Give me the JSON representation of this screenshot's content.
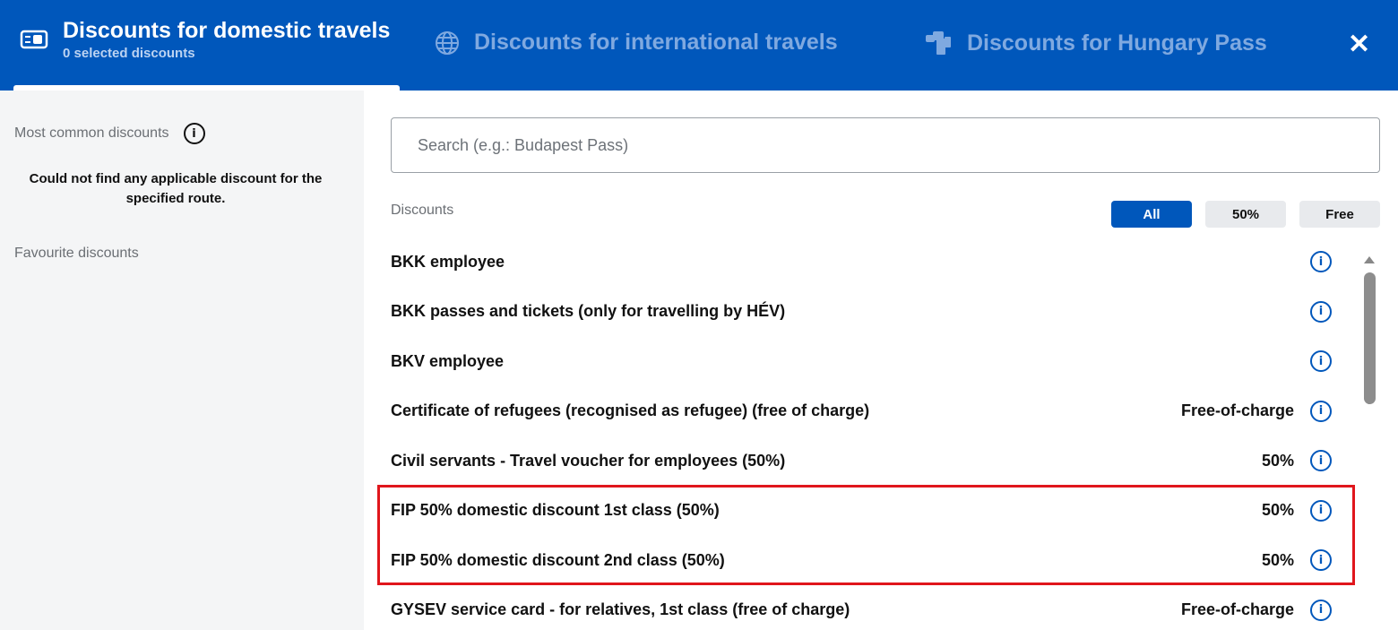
{
  "header": {
    "tabs": [
      {
        "label": "Discounts for domestic travels",
        "subtitle": "0 selected discounts",
        "icon": "card-icon",
        "active": true
      },
      {
        "label": "Discounts for international travels",
        "icon": "globe-icon"
      },
      {
        "label": "Discounts for Hungary Pass",
        "icon": "tickets-icon"
      }
    ],
    "close_icon": "close-icon"
  },
  "sidebar": {
    "common_label": "Most common discounts",
    "empty_message": "Could not find any applicable discount for the specified route.",
    "favourite_label": "Favourite discounts"
  },
  "main": {
    "search_placeholder": "Search (e.g.: Budapest Pass)",
    "discounts_label": "Discounts",
    "filters": [
      {
        "label": "All",
        "active": true
      },
      {
        "label": "50%"
      },
      {
        "label": "Free"
      }
    ],
    "rows": [
      {
        "name": "BKK employee",
        "value": ""
      },
      {
        "name": "BKK passes and tickets (only for travelling by HÉV)",
        "value": ""
      },
      {
        "name": "BKV employee",
        "value": ""
      },
      {
        "name": "Certificate of refugees (recognised as refugee) (free of charge)",
        "value": "Free-of-charge"
      },
      {
        "name": "Civil servants - Travel voucher for employees (50%)",
        "value": "50%"
      },
      {
        "name": "FIP 50% domestic discount 1st class (50%)",
        "value": "50%"
      },
      {
        "name": "FIP 50% domestic discount 2nd class (50%)",
        "value": "50%"
      },
      {
        "name": "GYSEV service card - for relatives, 1st class (free of charge)",
        "value": "Free-of-charge"
      }
    ]
  },
  "colors": {
    "brand": "#0057bb",
    "highlight": "#e0161c"
  }
}
